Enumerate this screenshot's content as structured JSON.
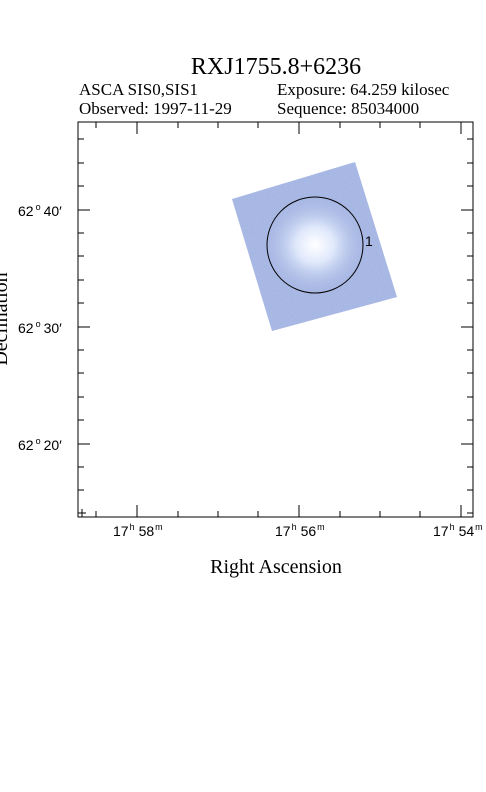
{
  "header": {
    "title": "RXJ1755.8+6236",
    "instrument": "ASCA SIS0,SIS1",
    "exposure": "Exposure: 64.259 kilosec",
    "observed": "Observed: 1997-11-29",
    "sequence": "Sequence: 85034000"
  },
  "axes": {
    "xlabel": "Right Ascension",
    "ylabel": "Declination",
    "xticks": [
      {
        "h": "17",
        "m": "58"
      },
      {
        "h": "17",
        "m": "56"
      },
      {
        "h": "17",
        "m": "54"
      }
    ],
    "yticks": [
      {
        "deg": "62",
        "min": "40"
      },
      {
        "deg": "62",
        "min": "30"
      },
      {
        "deg": "62",
        "min": "20"
      }
    ]
  },
  "image": {
    "source_circle_label": "1",
    "exposure_color": "#9fb0e0",
    "exposure_color_light": "#dfe8fb"
  }
}
